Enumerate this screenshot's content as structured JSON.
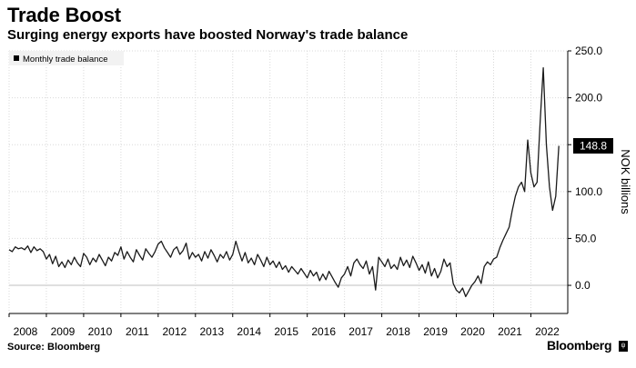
{
  "header": {
    "title": "Trade Boost",
    "subtitle": "Surging energy exports have boosted Norway's trade balance"
  },
  "footer": {
    "source": "Source: Bloomberg",
    "brand": "Bloomberg",
    "brand_mark": "ψ"
  },
  "colors": {
    "line": "#1a1a1a",
    "grid": "#d9d9d9",
    "zero_line": "#bfbfbf",
    "callout_bg": "#000000",
    "callout_text": "#ffffff"
  },
  "chart_data": {
    "type": "line",
    "title": "Trade Boost",
    "subtitle": "Surging energy exports have boosted Norway's trade balance",
    "ylabel": "NOK billions",
    "ylim": [
      -30,
      250
    ],
    "yticks": [
      0,
      50,
      100,
      150,
      200,
      250
    ],
    "ytick_labels": [
      "0.0",
      "50.0",
      "100.0",
      "150.0",
      "200.0",
      "250.0"
    ],
    "xlim": [
      2008,
      2022.99
    ],
    "xticks": [
      2008,
      2009,
      2010,
      2011,
      2012,
      2013,
      2014,
      2015,
      2016,
      2017,
      2018,
      2019,
      2020,
      2021,
      2022
    ],
    "xtick_labels": [
      "2008",
      "2009",
      "2010",
      "2011",
      "2012",
      "2013",
      "2014",
      "2015",
      "2016",
      "2017",
      "2018",
      "2019",
      "2020",
      "2021",
      "2022"
    ],
    "grid": true,
    "legend": {
      "position": "top-left",
      "entries": [
        "Monthly trade balance"
      ]
    },
    "last_value_label": "148.8",
    "series": [
      {
        "name": "Monthly trade balance",
        "start": "2008-01",
        "frequency": "monthly",
        "values": [
          38,
          36,
          41,
          39,
          40,
          38,
          42,
          35,
          41,
          37,
          39,
          36,
          28,
          33,
          23,
          31,
          20,
          25,
          19,
          27,
          22,
          30,
          24,
          20,
          34,
          30,
          22,
          29,
          25,
          33,
          27,
          21,
          30,
          26,
          35,
          32,
          41,
          28,
          36,
          30,
          25,
          38,
          32,
          27,
          39,
          34,
          30,
          36,
          44,
          47,
          40,
          35,
          30,
          38,
          41,
          33,
          37,
          45,
          28,
          35,
          30,
          33,
          26,
          36,
          29,
          38,
          32,
          25,
          33,
          29,
          36,
          27,
          33,
          47,
          36,
          26,
          35,
          24,
          29,
          22,
          33,
          27,
          20,
          30,
          22,
          26,
          19,
          25,
          17,
          21,
          14,
          20,
          16,
          12,
          18,
          13,
          8,
          16,
          10,
          14,
          5,
          12,
          6,
          15,
          9,
          3,
          -2,
          8,
          12,
          20,
          10,
          24,
          28,
          22,
          18,
          26,
          12,
          20,
          -5,
          30,
          25,
          20,
          28,
          18,
          22,
          17,
          30,
          21,
          27,
          19,
          31,
          24,
          16,
          22,
          13,
          25,
          10,
          18,
          8,
          15,
          28,
          20,
          24,
          2,
          -5,
          -8,
          -3,
          -12,
          -6,
          0,
          4,
          10,
          2,
          20,
          25,
          22,
          28,
          30,
          40,
          48,
          55,
          62,
          80,
          95,
          105,
          110,
          100,
          155,
          120,
          105,
          110,
          175,
          232,
          150,
          105,
          80,
          95,
          148.8
        ]
      }
    ]
  }
}
